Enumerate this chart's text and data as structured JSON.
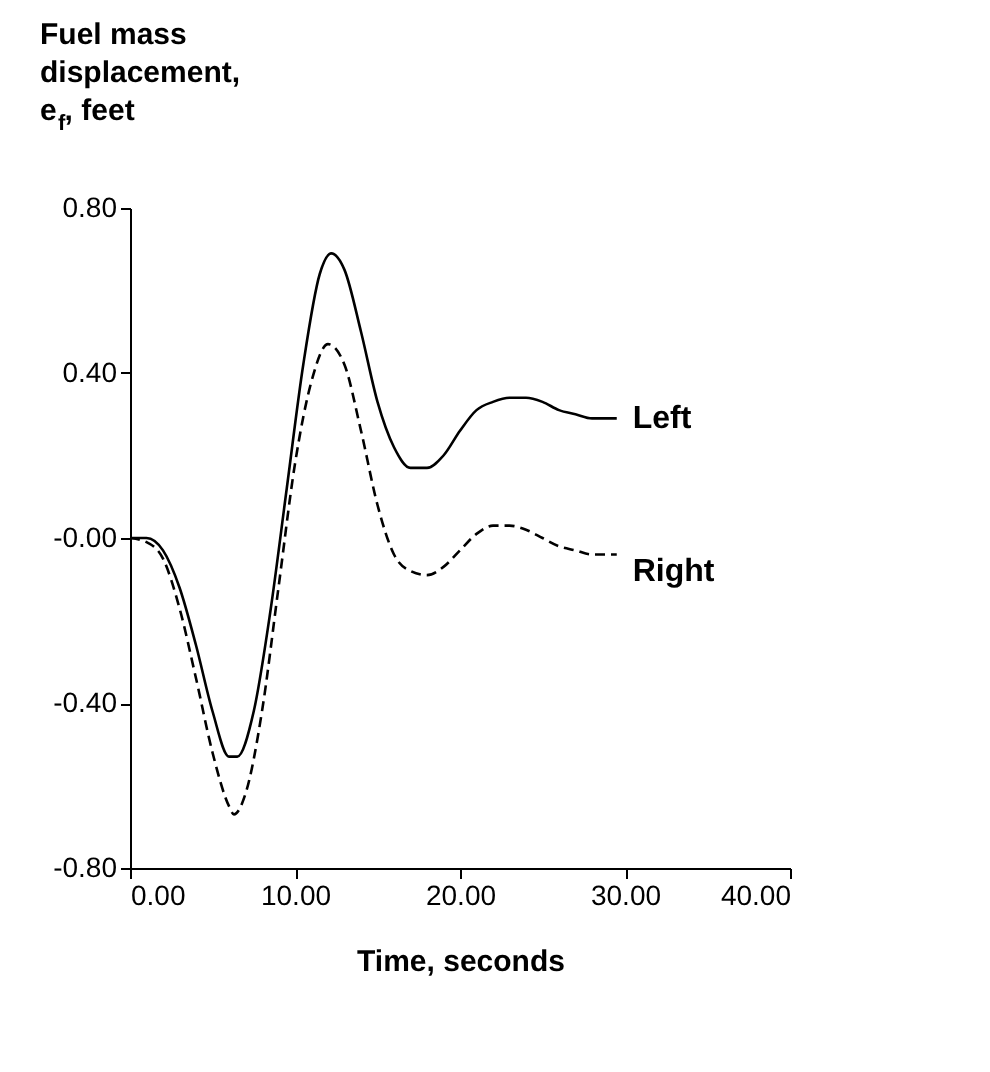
{
  "chart_data": {
    "type": "line",
    "xlabel": "Time, seconds",
    "ylabel": "Fuel mass displacement, e$_{f}$, feet",
    "xlim": [
      0,
      40
    ],
    "ylim": [
      -0.8,
      0.8
    ],
    "xticks": [
      {
        "value": 0,
        "label": "0.00"
      },
      {
        "value": 10,
        "label": "10.00"
      },
      {
        "value": 20,
        "label": "20.00"
      },
      {
        "value": 30,
        "label": "30.00"
      },
      {
        "value": 40,
        "label": "40.00"
      }
    ],
    "yticks": [
      {
        "value": -0.8,
        "label": "-0.80"
      },
      {
        "value": -0.4,
        "label": "-0.40"
      },
      {
        "value": 0,
        "label": "-0.00"
      },
      {
        "value": 0.4,
        "label": "0.40"
      },
      {
        "value": 0.8,
        "label": "0.80"
      }
    ],
    "grid": false,
    "series": [
      {
        "name": "Left",
        "color": "#000000",
        "line_style": "solid",
        "x": [
          0,
          1,
          2,
          3,
          4,
          5,
          6,
          6.5,
          7.5,
          8.5,
          9.5,
          10.5,
          11.5,
          12.2,
          13,
          14,
          15,
          16,
          17,
          18,
          19,
          20,
          21,
          22,
          23,
          24,
          25,
          26,
          27,
          28,
          29.5
        ],
        "values": [
          0,
          0.0,
          -0.03,
          -0.12,
          -0.26,
          -0.42,
          -0.53,
          -0.53,
          -0.42,
          -0.18,
          0.12,
          0.42,
          0.64,
          0.69,
          0.65,
          0.5,
          0.33,
          0.22,
          0.17,
          0.17,
          0.2,
          0.26,
          0.31,
          0.33,
          0.34,
          0.34,
          0.33,
          0.31,
          0.3,
          0.29,
          0.29
        ]
      },
      {
        "name": "Right",
        "color": "#000000",
        "line_style": "dashed",
        "x": [
          0,
          1,
          2,
          3,
          4,
          5,
          6,
          6.3,
          7,
          8,
          9,
          10,
          11,
          12,
          13,
          14,
          15,
          16,
          17,
          18,
          19,
          20,
          21,
          22,
          23,
          24,
          25,
          26,
          27,
          28,
          29.5
        ],
        "values": [
          0,
          -0.01,
          -0.05,
          -0.17,
          -0.34,
          -0.52,
          -0.65,
          -0.67,
          -0.62,
          -0.42,
          -0.12,
          0.18,
          0.38,
          0.47,
          0.42,
          0.26,
          0.08,
          -0.04,
          -0.08,
          -0.09,
          -0.07,
          -0.03,
          0.01,
          0.03,
          0.03,
          0.02,
          0.0,
          -0.02,
          -0.03,
          -0.04,
          -0.04
        ]
      }
    ]
  }
}
